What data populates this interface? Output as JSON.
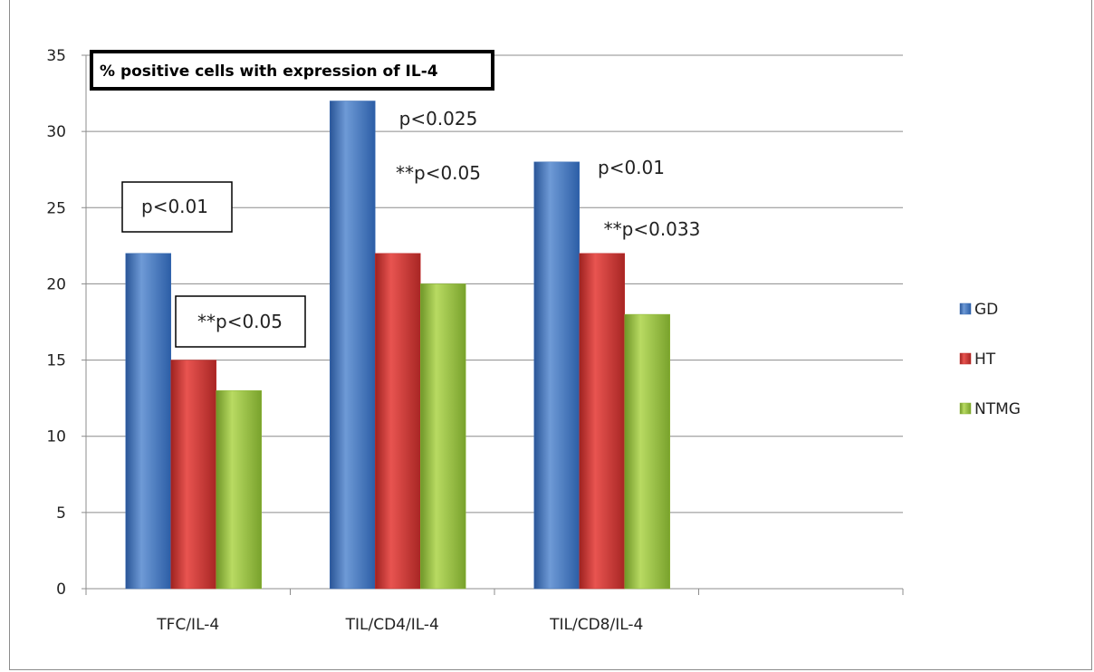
{
  "chart_data": {
    "type": "bar",
    "title": "% positive cells with expression of IL-4",
    "categories": [
      "TFC/IL-4",
      "TIL/CD4/IL-4",
      "TIL/CD8/IL-4"
    ],
    "series": [
      {
        "name": "GD",
        "values": [
          22,
          32,
          28
        ],
        "color": "#3a6db5"
      },
      {
        "name": "HT",
        "values": [
          15,
          22,
          22
        ],
        "color": "#c43230"
      },
      {
        "name": "NTMG",
        "values": [
          13,
          20,
          18
        ],
        "color": "#8fb83a"
      }
    ],
    "ylim": [
      0,
      35
    ],
    "yticks": [
      0,
      5,
      10,
      15,
      20,
      25,
      30,
      35
    ],
    "xlabel": "",
    "ylabel": "",
    "grid": true,
    "legend_position": "right",
    "annotations": [
      {
        "text": "p<0.01",
        "boxed": true
      },
      {
        "text": "**p<0.05",
        "boxed": true
      },
      {
        "text": "p<0.025",
        "boxed": false
      },
      {
        "text": "**p<0.05",
        "boxed": false
      },
      {
        "text": "p<0.01",
        "boxed": false
      },
      {
        "text": "**p<0.033",
        "boxed": false
      }
    ]
  }
}
